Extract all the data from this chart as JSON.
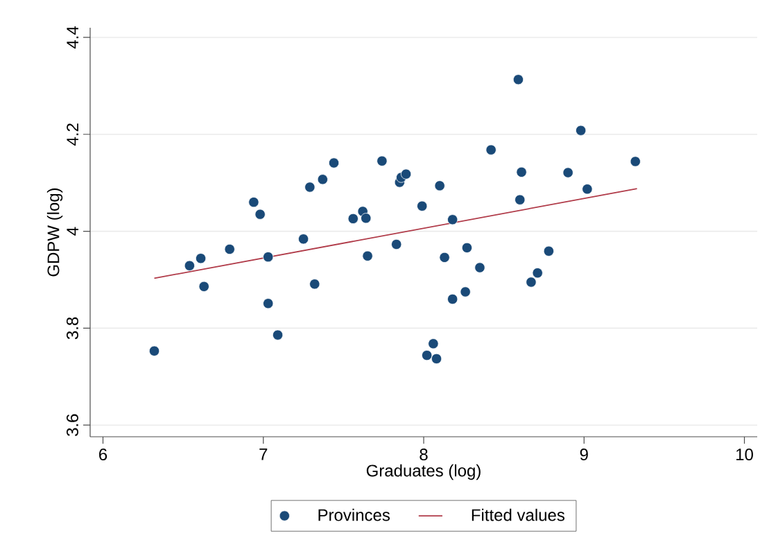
{
  "chart_data": {
    "type": "scatter",
    "xlabel": "Graduates (log)",
    "ylabel": "GDPW (log)",
    "xlim": [
      5.92,
      10.08
    ],
    "ylim": [
      3.576,
      4.42
    ],
    "xticks": [
      6,
      7,
      8,
      9,
      10
    ],
    "yticks": [
      3.6,
      3.8,
      4,
      4.2,
      4.4
    ],
    "grid": "y",
    "legend": "bottom",
    "series": [
      {
        "name": "Provinces",
        "marker": "circle",
        "color": "#1a4a78",
        "x": [
          6.32,
          6.54,
          6.61,
          6.63,
          6.79,
          6.94,
          6.98,
          7.03,
          7.03,
          7.09,
          7.25,
          7.29,
          7.32,
          7.37,
          7.44,
          7.56,
          7.62,
          7.64,
          7.65,
          7.74,
          7.83,
          7.85,
          7.86,
          7.89,
          7.99,
          8.02,
          8.06,
          8.08,
          8.1,
          8.13,
          8.18,
          8.18,
          8.27,
          8.26,
          8.35,
          8.42,
          8.59,
          8.61,
          8.6,
          8.67,
          8.71,
          8.78,
          8.9,
          8.98,
          9.02,
          9.32
        ],
        "values": [
          3.753,
          3.929,
          3.944,
          3.886,
          3.963,
          4.06,
          4.035,
          3.947,
          3.851,
          3.786,
          3.984,
          4.091,
          3.891,
          4.107,
          4.141,
          4.026,
          4.041,
          4.027,
          3.949,
          4.145,
          3.973,
          4.101,
          4.111,
          4.118,
          4.052,
          3.744,
          3.768,
          3.737,
          4.094,
          3.946,
          4.024,
          3.86,
          3.966,
          3.875,
          3.925,
          4.168,
          4.313,
          4.122,
          4.065,
          3.895,
          3.914,
          3.959,
          4.121,
          4.208,
          4.087,
          4.144
        ]
      },
      {
        "name": "Fitted values",
        "type": "line",
        "marker": "none",
        "line_style": "solid",
        "color": "#b03a48",
        "x": [
          6.32,
          9.33
        ],
        "values": [
          3.903,
          4.088
        ]
      }
    ]
  }
}
